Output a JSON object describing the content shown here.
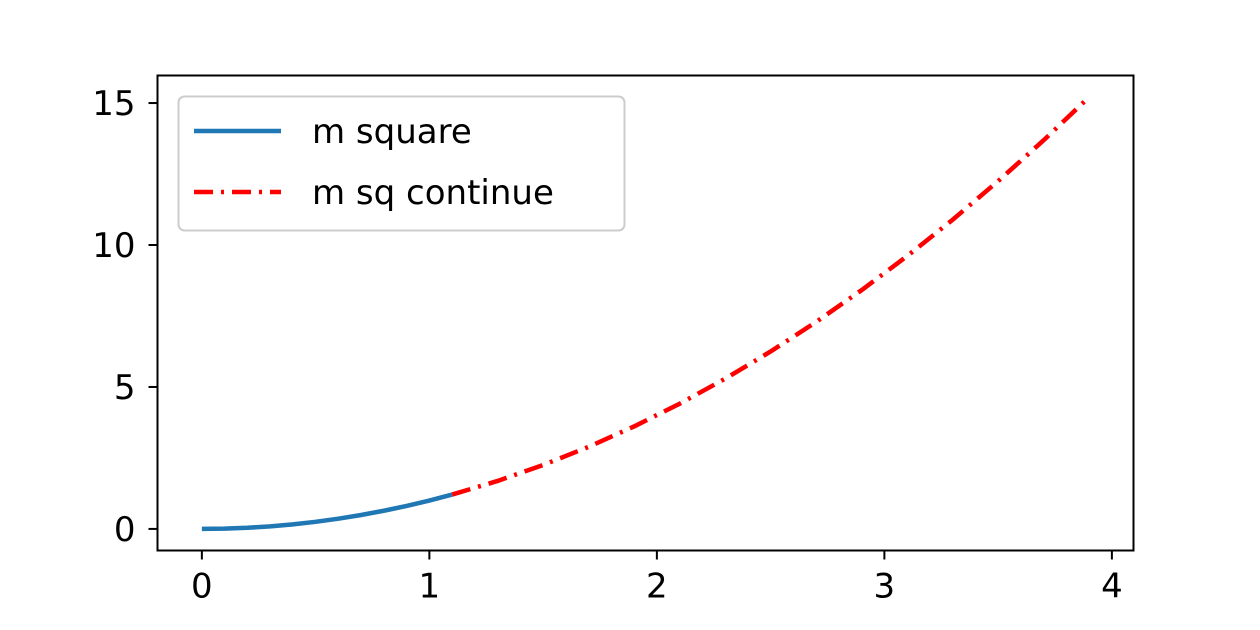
{
  "chart_data": {
    "type": "line",
    "xlim": [
      -0.195,
      4.095
    ],
    "ylim": [
      -0.76,
      15.97
    ],
    "xticks": [
      0,
      1,
      2,
      3,
      4
    ],
    "yticks": [
      0,
      5,
      10,
      15
    ],
    "grid": false,
    "legend_position": "top-left",
    "series": [
      {
        "name": "m square",
        "color": "#1f77b4",
        "style": "solid",
        "x": [
          0,
          0.1,
          0.2,
          0.3,
          0.4,
          0.5,
          0.6,
          0.7,
          0.8,
          0.9,
          1.0,
          1.1
        ],
        "y": [
          0,
          0.01,
          0.04,
          0.09,
          0.16,
          0.25,
          0.36,
          0.49,
          0.64,
          0.81,
          1.0,
          1.21
        ]
      },
      {
        "name": "m sq continue",
        "color": "#ff0000",
        "style": "dashdot",
        "x": [
          1.1,
          1.3,
          1.5,
          1.7,
          1.9,
          2.1,
          2.3,
          2.5,
          2.7,
          2.9,
          3.1,
          3.3,
          3.5,
          3.7,
          3.9
        ],
        "y": [
          1.21,
          1.69,
          2.25,
          2.89,
          3.61,
          4.41,
          5.29,
          6.25,
          7.29,
          8.41,
          9.61,
          10.89,
          12.25,
          13.69,
          15.21
        ]
      }
    ]
  }
}
